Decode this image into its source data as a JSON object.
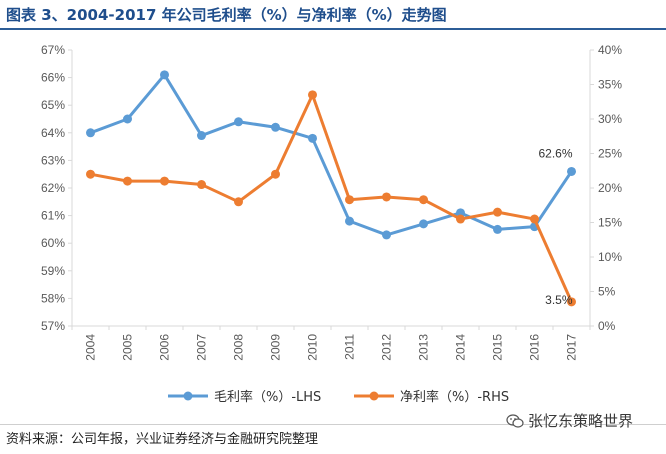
{
  "title": "图表 3、2004-2017 年公司毛利率（%）与净利率（%）走势图",
  "source": "资料来源：公司年报，兴业证券经济与金融研究院整理",
  "watermark": "张忆东策略世界",
  "watermark_icon": "wechat-icon",
  "colors": {
    "title": "#1f4e8c",
    "blue": "#5b9bd5",
    "orange": "#ed7d31",
    "grid": "#d9d9d9",
    "axis_text": "#595959"
  },
  "chart_data": {
    "type": "line",
    "title": "",
    "x": [
      "2004",
      "2005",
      "2006",
      "2007",
      "2008",
      "2009",
      "2010",
      "2011",
      "2012",
      "2013",
      "2014",
      "2015",
      "2016",
      "2017"
    ],
    "series": [
      {
        "name": "毛利率（%）-LHS",
        "axis": "left",
        "values": [
          64.0,
          64.5,
          66.1,
          63.9,
          64.4,
          64.2,
          63.8,
          60.8,
          60.3,
          60.7,
          61.1,
          60.5,
          60.6,
          62.6
        ]
      },
      {
        "name": "净利率（%）-RHS",
        "axis": "right",
        "values": [
          22.0,
          21.0,
          21.0,
          20.5,
          18.0,
          22.0,
          33.5,
          18.3,
          18.7,
          18.3,
          15.5,
          16.5,
          15.5,
          3.5
        ]
      }
    ],
    "y_left": {
      "min": 57,
      "max": 67,
      "step": 1,
      "ticks": [
        "57%",
        "58%",
        "59%",
        "60%",
        "61%",
        "62%",
        "63%",
        "64%",
        "65%",
        "66%",
        "67%"
      ]
    },
    "y_right": {
      "min": 0,
      "max": 40,
      "step": 5,
      "ticks": [
        "0%",
        "5%",
        "10%",
        "15%",
        "20%",
        "25%",
        "30%",
        "35%",
        "40%"
      ]
    },
    "annotations": [
      {
        "series": 0,
        "index": 13,
        "text": "62.6%"
      },
      {
        "series": 1,
        "index": 13,
        "text": "3.5%"
      }
    ],
    "legend": "bottom",
    "grid": false
  }
}
